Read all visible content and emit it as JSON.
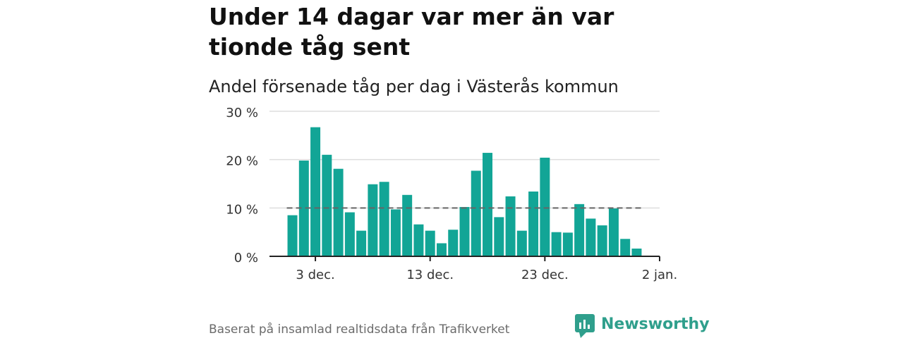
{
  "header": {
    "title": "Under 14 dagar var mer än var tionde tåg sent",
    "subtitle": "Andel försenade tåg per dag i Västerås kommun"
  },
  "footer": {
    "source": "Baserat på insamlad realtidsdata från Trafikverket",
    "brand": "Newsworthy",
    "brand_icon": "newsworthy-chart-icon"
  },
  "colors": {
    "bar": "#12a596",
    "threshold_line": "#666666",
    "grid": "#dddddd",
    "brand": "#2f9f8c"
  },
  "chart_data": {
    "type": "bar",
    "x_start": "2023-12-01",
    "x_range": [
      "2023-11-29",
      "2024-01-02"
    ],
    "ylim": [
      0,
      30
    ],
    "yticks": [
      0,
      10,
      20,
      30
    ],
    "ytick_labels": [
      "0 %",
      "10 %",
      "20 %",
      "30 %"
    ],
    "xtick_labels": [
      "3 dec.",
      "13 dec.",
      "23 dec.",
      "2 jan."
    ],
    "xtick_dates": [
      "2023-12-03",
      "2023-12-13",
      "2023-12-23",
      "2024-01-02"
    ],
    "grid": true,
    "threshold": 10,
    "values": [
      8.5,
      19.8,
      26.7,
      21.0,
      18.1,
      9.1,
      5.3,
      14.9,
      15.4,
      9.7,
      12.7,
      6.6,
      5.3,
      2.7,
      5.5,
      10.2,
      17.7,
      21.4,
      8.1,
      12.4,
      5.3,
      13.4,
      20.4,
      5.0,
      4.9,
      10.8,
      7.8,
      6.4,
      9.9,
      3.6,
      1.6
    ]
  }
}
